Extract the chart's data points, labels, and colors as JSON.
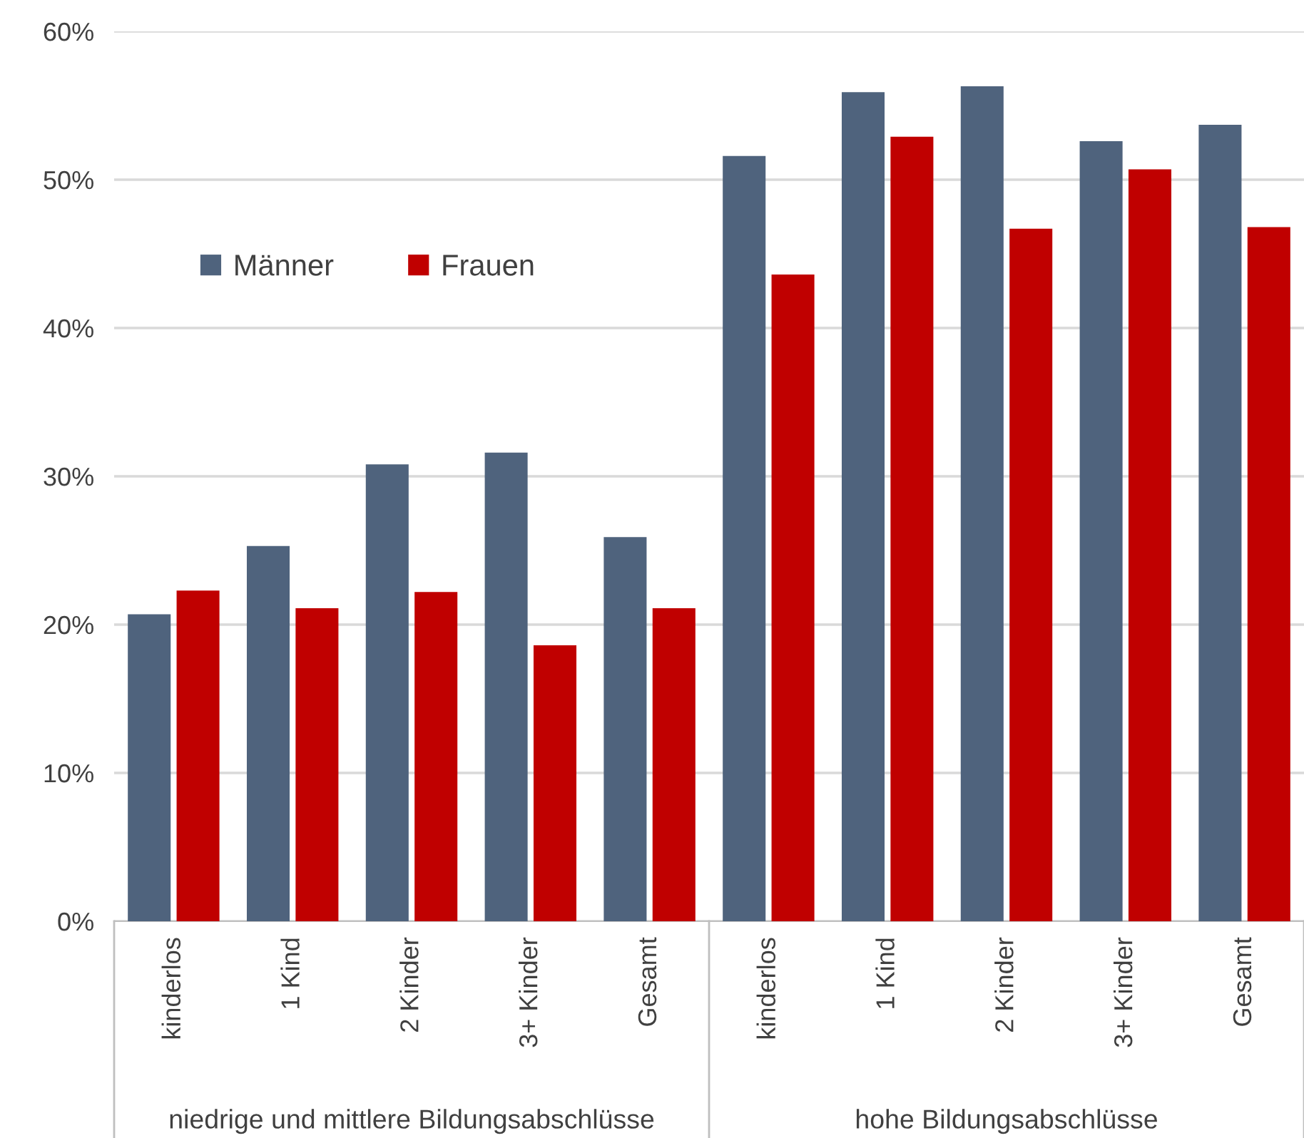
{
  "chart_data": {
    "type": "bar",
    "categories": [
      "kinderlos",
      "1 Kind",
      "2 Kinder",
      "3+ Kinder",
      "Gesamt",
      "kinderlos",
      "1 Kind",
      "2 Kinder",
      "3+ Kinder",
      "Gesamt"
    ],
    "series": [
      {
        "name": "Männer",
        "color": "#4f637d",
        "values": [
          20.7,
          25.3,
          30.8,
          31.6,
          25.9,
          51.6,
          55.9,
          56.3,
          52.6,
          53.7
        ]
      },
      {
        "name": "Frauen",
        "color": "#c00000",
        "values": [
          22.3,
          21.1,
          22.2,
          18.6,
          21.1,
          43.6,
          52.9,
          46.7,
          50.7,
          46.8
        ]
      }
    ],
    "annotations": [
      "niedrige und mittlere Bildungsabschlüsse",
      "hohe Bildungsabschlüsse"
    ],
    "ylim": [
      0,
      60
    ],
    "yticks": [
      {
        "value": 0,
        "label": "0%"
      },
      {
        "value": 10,
        "label": "10%"
      },
      {
        "value": 20,
        "label": "20%"
      },
      {
        "value": 30,
        "label": "30%"
      },
      {
        "value": 40,
        "label": "40%"
      },
      {
        "value": 50,
        "label": "50%"
      },
      {
        "value": 60,
        "label": "60%"
      }
    ],
    "grid": "y",
    "legend": "top left"
  }
}
